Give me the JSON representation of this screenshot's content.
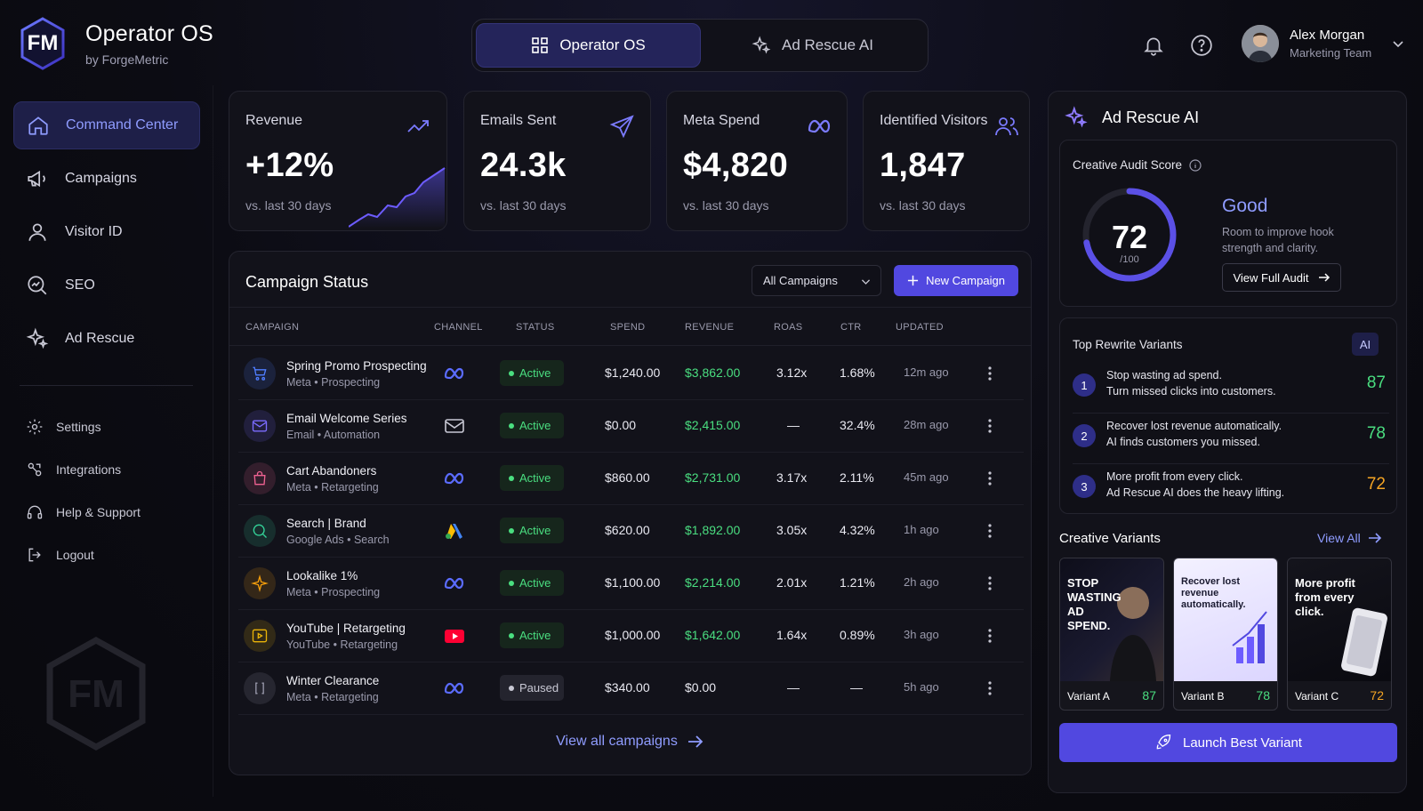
{
  "brand": {
    "logo_text": "FM",
    "title": "Operator OS",
    "subtitle": "by ForgeMetric"
  },
  "nav": [
    {
      "label": "Command Center",
      "icon": "home-icon",
      "active": true
    },
    {
      "label": "Campaigns",
      "icon": "megaphone-icon"
    },
    {
      "label": "Visitor ID",
      "icon": "user-icon"
    },
    {
      "label": "SEO",
      "icon": "search-chart-icon"
    },
    {
      "label": "Ad Rescue",
      "icon": "sparkle-icon"
    }
  ],
  "nav2": [
    {
      "label": "Settings",
      "icon": "gear-icon"
    },
    {
      "label": "Integrations",
      "icon": "plug-icon"
    },
    {
      "label": "Help & Support",
      "icon": "headset-icon"
    },
    {
      "label": "Logout",
      "icon": "logout-icon"
    }
  ],
  "watermark": "FM",
  "topbar": {
    "tab1": "Operator OS",
    "tab2": "Ad Rescue AI"
  },
  "user": {
    "name": "Alex Morgan",
    "role": "Marketing Team"
  },
  "stats": [
    {
      "label": "Revenue",
      "value": "+12%",
      "sub": "vs. last 30 days",
      "icon": "trend-up-icon"
    },
    {
      "label": "Emails Sent",
      "value": "24.3k",
      "sub": "vs. last 30 days",
      "icon": "send-icon"
    },
    {
      "label": "Meta Spend",
      "value": "$4,820",
      "sub": "vs. last 30 days",
      "icon": "meta-icon"
    },
    {
      "label": "Identified Visitors",
      "value": "1,847",
      "sub": "vs. last 30 days",
      "icon": "users-icon"
    }
  ],
  "campaigns": {
    "title": "Campaign Status",
    "filter": "All Campaigns",
    "new_button": "New Campaign",
    "headers": [
      "CAMPAIGN",
      "CHANNEL",
      "STATUS",
      "SPEND",
      "REVENUE",
      "ROAS",
      "CTR",
      "UPDATED"
    ],
    "rows": [
      {
        "name": "Spring Promo Prospecting",
        "meta": "Meta • Prospecting",
        "channel": "meta",
        "status": "Active",
        "spend": "$1,240.00",
        "revenue": "$3,862.00",
        "roas": "3.12x",
        "ctr": "1.68%",
        "updated": "12m ago",
        "icon": "cart-icon",
        "color": "#4f7dff"
      },
      {
        "name": "Email Welcome Series",
        "meta": "Email • Automation",
        "channel": "email",
        "status": "Active",
        "spend": "$0.00",
        "revenue": "$2,415.00",
        "roas": "—",
        "ctr": "32.4%",
        "updated": "28m ago",
        "icon": "mail-icon",
        "color": "#7b6cff"
      },
      {
        "name": "Cart Abandoners",
        "meta": "Meta • Retargeting",
        "channel": "meta",
        "status": "Active",
        "spend": "$860.00",
        "revenue": "$2,731.00",
        "roas": "3.17x",
        "ctr": "2.11%",
        "updated": "45m ago",
        "icon": "bag-icon",
        "color": "#f06292"
      },
      {
        "name": "Search | Brand",
        "meta": "Google Ads • Search",
        "channel": "google",
        "status": "Active",
        "spend": "$620.00",
        "revenue": "$1,892.00",
        "roas": "3.05x",
        "ctr": "4.32%",
        "updated": "1h ago",
        "icon": "search-icon",
        "color": "#34d399"
      },
      {
        "name": "Lookalike 1%",
        "meta": "Meta • Prospecting",
        "channel": "meta",
        "status": "Active",
        "spend": "$1,100.00",
        "revenue": "$2,214.00",
        "roas": "2.01x",
        "ctr": "1.21%",
        "updated": "2h ago",
        "icon": "star-icon",
        "color": "#f59e0b"
      },
      {
        "name": "YouTube | Retargeting",
        "meta": "YouTube • Retargeting",
        "channel": "youtube",
        "status": "Active",
        "spend": "$1,000.00",
        "revenue": "$1,642.00",
        "roas": "1.64x",
        "ctr": "0.89%",
        "updated": "3h ago",
        "icon": "play-icon",
        "color": "#eab308"
      },
      {
        "name": "Winter Clearance",
        "meta": "Meta • Retargeting",
        "channel": "meta",
        "status": "Paused",
        "spend": "$340.00",
        "revenue": "$0.00",
        "roas": "—",
        "ctr": "—",
        "updated": "5h ago",
        "icon": "bracket-icon",
        "color": "#9a9aac"
      }
    ],
    "view_all": "View all campaigns"
  },
  "adrescue": {
    "title": "Ad Rescue AI",
    "audit_title": "Creative Audit Score",
    "score": 72,
    "score_text": "72",
    "score_den": "/100",
    "rating": "Good",
    "rating_desc": "Room to improve hook strength and clarity.",
    "audit_button": "View Full Audit",
    "rewrites_title": "Top Rewrite Variants",
    "ai_badge": "AI",
    "rewrites": [
      {
        "n": "1",
        "l1": "Stop wasting ad spend.",
        "l2": "Turn missed clicks into customers.",
        "score": "87",
        "color": "#4ade80"
      },
      {
        "n": "2",
        "l1": "Recover lost revenue automatically.",
        "l2": "AI finds customers you missed.",
        "score": "78",
        "color": "#4ade80"
      },
      {
        "n": "3",
        "l1": "More profit from every click.",
        "l2": "Ad Rescue AI does the heavy lifting.",
        "score": "72",
        "color": "#f5a524"
      }
    ],
    "variants_title": "Creative Variants",
    "view_all": "View All",
    "variants": [
      {
        "label": "Variant A",
        "score": "87",
        "headline": "STOP WASTING AD SPEND.",
        "color": "#4ade80"
      },
      {
        "label": "Variant B",
        "score": "78",
        "headline": "Recover lost revenue automatically.",
        "color": "#4ade80"
      },
      {
        "label": "Variant C",
        "score": "72",
        "headline": "More profit from every click.",
        "color": "#f5a524"
      }
    ],
    "launch": "Launch Best Variant"
  }
}
